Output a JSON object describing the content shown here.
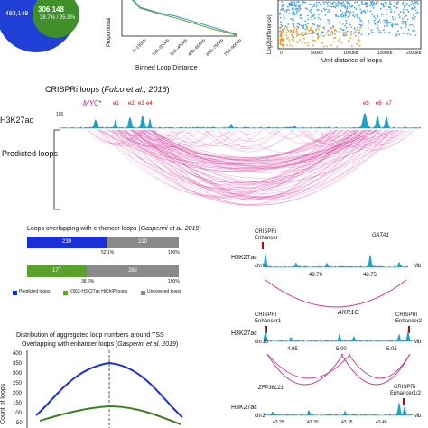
{
  "venn": {
    "left_value": "483,149",
    "right_value": "306,148",
    "right_pct": "38.7% / 95.9%",
    "colors": {
      "left": "#1f3fd6",
      "right": "#3f8f2a"
    }
  },
  "line_plot": {
    "ylabel": "Proportional",
    "xlabel": "Binned Loop Distance",
    "ticks": [
      "0–150kb",
      "150–300kb",
      "300–450kb",
      "450–600kb",
      "600–750kb",
      "750–900kb"
    ]
  },
  "scatter_plot": {
    "ylabel": "Log2(difference)",
    "xlabel": "Unit distance of loops",
    "ticks": [
      "0",
      "500kb",
      "1000kb",
      "1500kb",
      "2000kb"
    ]
  },
  "crispri": {
    "title_prefix": "CRISPRi loops (",
    "title_cite": "Fulco et al., 2016",
    "title_suffix": ")",
    "gene": "MYC",
    "enhancers": [
      "e1",
      "e2",
      "e3",
      "e4",
      "e5",
      "e6",
      "e7"
    ],
    "track_label": "H3K27ac",
    "scale_label": "150",
    "predicted_label": "Predicted loops"
  },
  "bars": {
    "title_prefix": "Loops overlapping with enhancer loops (",
    "title_cite": "Gasperini et al. 2019",
    "title_suffix": ")",
    "bar1": {
      "a": "239",
      "b": "220",
      "pct": "52.1%",
      "end": "100%"
    },
    "bar2": {
      "a": "177",
      "b": "282",
      "pct": "38.6%",
      "end": "100%"
    },
    "legend": [
      "Predicted loops",
      "K562-H3K27ac HiChIP loops",
      "Uncovered loops"
    ],
    "colors": {
      "blue": "#1a2fd6",
      "green": "#5aa02c",
      "gray": "#8a8a8a"
    }
  },
  "dist_plot": {
    "title1": "Distribution of aggregated loop numbers around TSS",
    "title2_prefix": "Overlapping with enhancer loops (",
    "title2_cite": "Gasperini et al. 2019",
    "title2_suffix": ")",
    "ylabel": "Count of loops",
    "yticks": [
      "400",
      "350",
      "300",
      "250",
      "200",
      "150",
      "100",
      "50"
    ]
  },
  "locus1": {
    "crispri": "CRISPRi",
    "enhancer": "Enhancer",
    "gene": "GATA1",
    "track": "H3K27ac",
    "chrom": "chrX",
    "ticks": [
      "48.70",
      "48.75"
    ],
    "unit": "Mb"
  },
  "locus2": {
    "crispri_left": "CRISPRi",
    "enhancer_left": "Enhancer1",
    "gene": "AKR1C",
    "crispri_right": "CRISPRi",
    "enhancer_right": "Enhancer2",
    "track": "H3K27ac",
    "chrom": "chr10",
    "ticks": [
      "4.95",
      "5.00",
      "5.05"
    ],
    "unit": "Mb"
  },
  "locus3": {
    "gene": "ZFP36L21",
    "crispri": "CRISPRi",
    "enhancer": "Enhancer1/2",
    "track": "H3K27ac",
    "chrom": "chr2",
    "ticks": [
      "43.25",
      "43.30",
      "43.35",
      "43.40"
    ],
    "unit": "Mb"
  }
}
